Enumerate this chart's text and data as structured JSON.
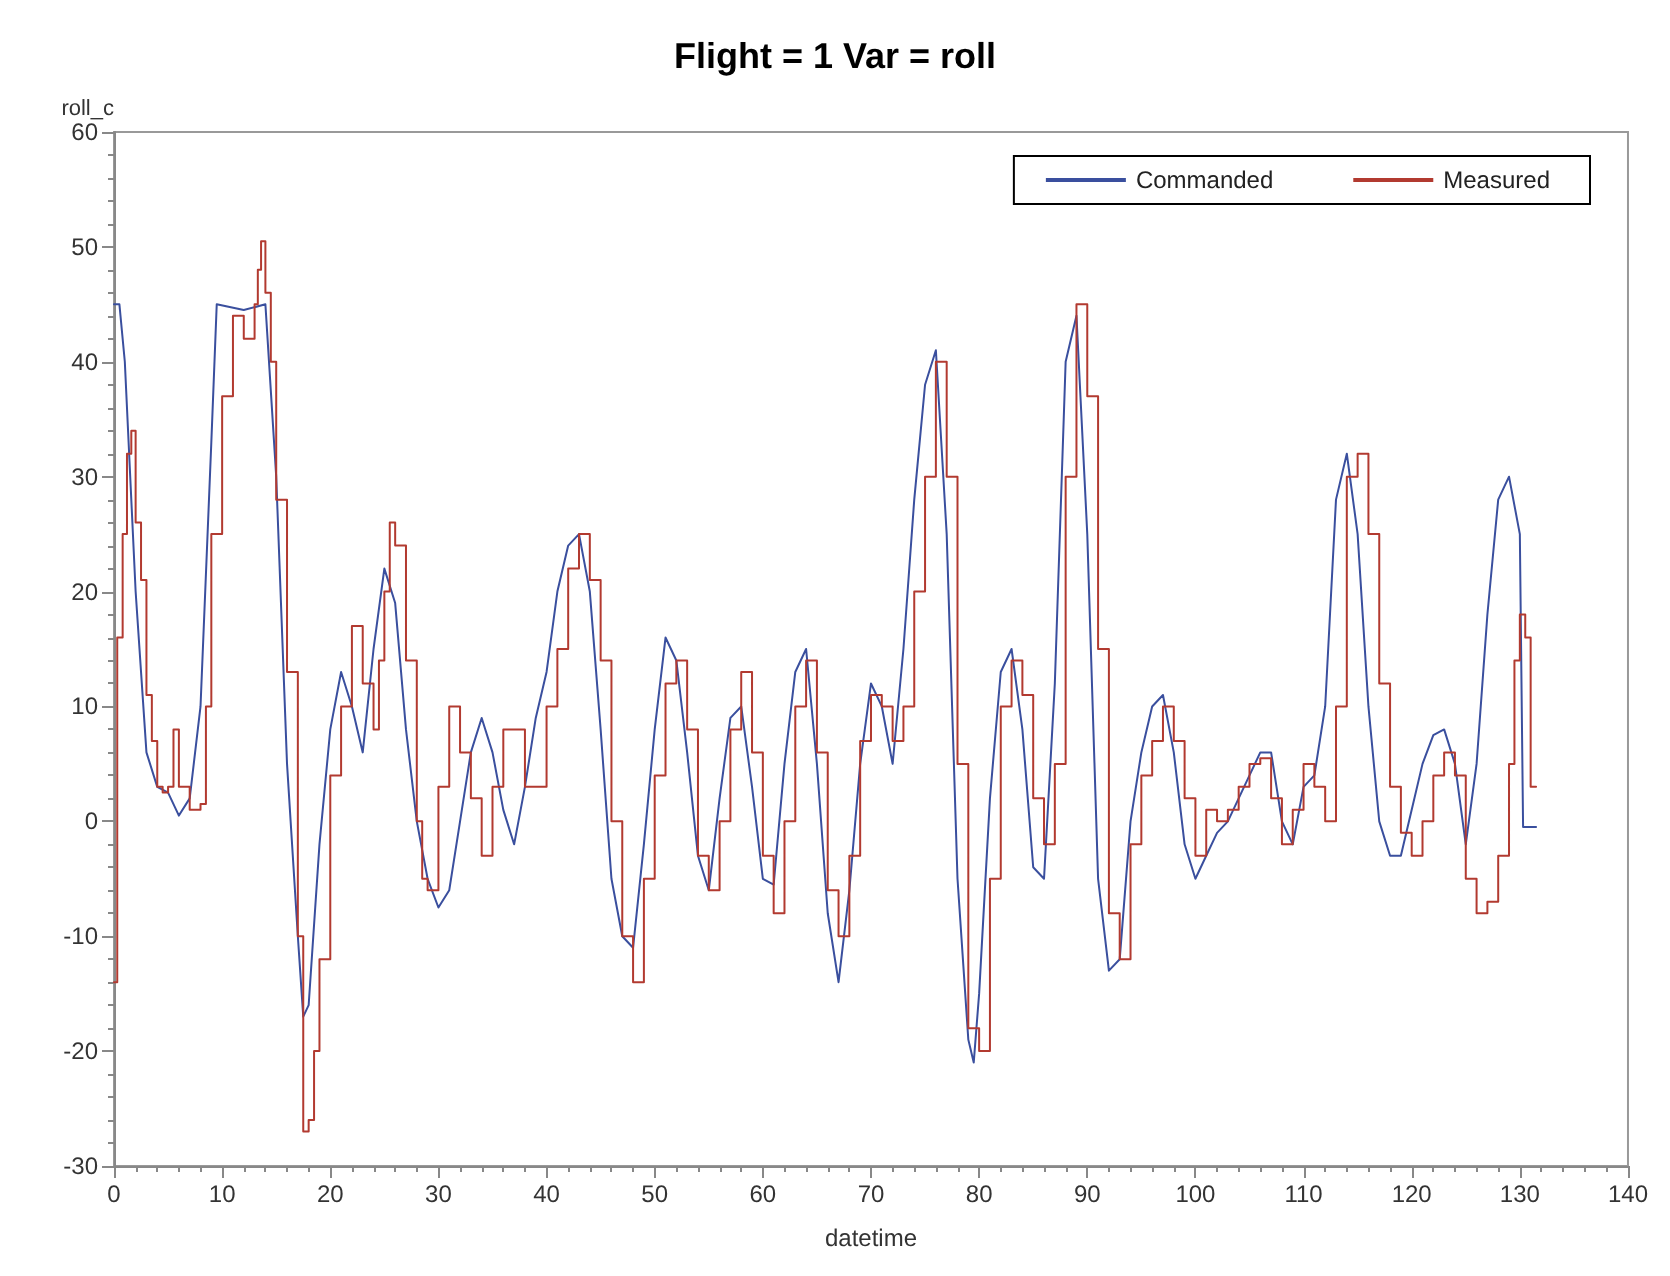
{
  "chart_data": {
    "type": "line",
    "title": "Flight = 1 Var = roll",
    "xlabel": "datetime",
    "ylabel": "roll_c",
    "xlim": [
      0,
      140
    ],
    "xticks": [
      0,
      10,
      20,
      30,
      40,
      50,
      60,
      70,
      80,
      90,
      100,
      110,
      120,
      130,
      140
    ],
    "ylim": [
      -30,
      60
    ],
    "yticks": [
      -30,
      -20,
      -10,
      0,
      10,
      20,
      30,
      40,
      50,
      60
    ],
    "grid": false,
    "legend": "top right",
    "marker": "none",
    "series": [
      {
        "name": "Commanded",
        "color": "#3a4f9e",
        "x": [
          0,
          0.5,
          1,
          2,
          3,
          4,
          5,
          6,
          7,
          8,
          9,
          9.5,
          12,
          14,
          15,
          16,
          17,
          17.5,
          18,
          19,
          20,
          21,
          22,
          23,
          24,
          25,
          26,
          27,
          28,
          29,
          30,
          31,
          32,
          33,
          34,
          35,
          36,
          37,
          38,
          39,
          40,
          41,
          42,
          43,
          44,
          45,
          46,
          47,
          48,
          49,
          50,
          51,
          52,
          53,
          54,
          55,
          56,
          57,
          58,
          59,
          60,
          61,
          62,
          63,
          64,
          65,
          66,
          67,
          68,
          69,
          70,
          71,
          72,
          73,
          74,
          75,
          76,
          77,
          78,
          79,
          79.5,
          80,
          81,
          82,
          83,
          84,
          85,
          86,
          87,
          88,
          89,
          90,
          91,
          92,
          93,
          94,
          95,
          96,
          97,
          98,
          99,
          100,
          101,
          102,
          103,
          104,
          105,
          106,
          107,
          108,
          109,
          110,
          111,
          112,
          113,
          114,
          115,
          116,
          117,
          118,
          119,
          120,
          121,
          122,
          123,
          124,
          125,
          126,
          127,
          128,
          129,
          130,
          130.3,
          131.5
        ],
        "values": [
          45,
          45,
          40,
          20,
          6,
          3,
          2.5,
          0.5,
          2,
          10,
          33,
          45,
          44.5,
          45,
          30,
          5,
          -10,
          -17,
          -16,
          -2,
          8,
          13,
          10,
          6,
          15,
          22,
          19,
          8,
          0,
          -5,
          -7.5,
          -6,
          0,
          6,
          9,
          6,
          1,
          -2,
          3,
          9,
          13,
          20,
          24,
          25,
          20,
          8,
          -5,
          -10,
          -11,
          -2,
          8,
          16,
          14,
          6,
          -3,
          -6,
          2,
          9,
          10,
          3,
          -5,
          -5.5,
          5,
          13,
          15,
          5,
          -8,
          -14,
          -6,
          5,
          12,
          10,
          5,
          15,
          28,
          38,
          41,
          25,
          -5,
          -19,
          -21,
          -15,
          2,
          13,
          15,
          8,
          -4,
          -5,
          12,
          40,
          44,
          25,
          -5,
          -13,
          -12,
          0,
          6,
          10,
          11,
          6,
          -2,
          -5,
          -3,
          -1,
          0,
          2,
          4,
          6,
          6,
          0,
          -2,
          3,
          4,
          10,
          28,
          32,
          25,
          10,
          0,
          -3,
          -3,
          1,
          5,
          7.5,
          8,
          5,
          -2,
          5,
          18,
          28,
          30,
          25,
          -0.5,
          -0.5
        ]
      },
      {
        "name": "Measured",
        "type": "step",
        "color": "#b23a30",
        "x": [
          0,
          0.3,
          0.8,
          1.2,
          1.6,
          2,
          2.5,
          3,
          3.5,
          4,
          4.5,
          5,
          5.5,
          6,
          7,
          8,
          8.5,
          9,
          10,
          11,
          12,
          13,
          13.3,
          13.6,
          14,
          14.5,
          15,
          16,
          17,
          17.5,
          18,
          18.5,
          19,
          20,
          21,
          22,
          23,
          24,
          24.5,
          25,
          25.5,
          26,
          27,
          28,
          28.5,
          29,
          30,
          31,
          32,
          33,
          34,
          35,
          36,
          37,
          38,
          39,
          40,
          41,
          42,
          43,
          44,
          45,
          46,
          47,
          48,
          49,
          50,
          51,
          52,
          53,
          54,
          55,
          56,
          57,
          58,
          59,
          60,
          61,
          62,
          63,
          64,
          65,
          66,
          67,
          68,
          69,
          70,
          71,
          72,
          73,
          74,
          75,
          76,
          77,
          78,
          79,
          80,
          81,
          82,
          83,
          84,
          85,
          86,
          87,
          88,
          89,
          90,
          91,
          92,
          93,
          94,
          95,
          96,
          97,
          98,
          99,
          100,
          101,
          102,
          103,
          104,
          105,
          106,
          107,
          108,
          109,
          110,
          111,
          112,
          113,
          114,
          115,
          116,
          117,
          118,
          119,
          120,
          121,
          122,
          123,
          124,
          125,
          126,
          127,
          128,
          129,
          129.5,
          130,
          130.5,
          131,
          131.5
        ],
        "values": [
          -14,
          16,
          25,
          32,
          34,
          26,
          21,
          11,
          7,
          3,
          2.5,
          3,
          8,
          3,
          1,
          1.5,
          10,
          25,
          37,
          44,
          42,
          45,
          48,
          50.5,
          46,
          40,
          28,
          13,
          -10,
          -27,
          -26,
          -20,
          -12,
          4,
          10,
          17,
          12,
          8,
          14,
          20,
          26,
          24,
          14,
          0,
          -5,
          -6,
          3,
          10,
          6,
          2,
          -3,
          3,
          8,
          8,
          3,
          3,
          10,
          15,
          22,
          25,
          21,
          14,
          0,
          -10,
          -14,
          -5,
          4,
          12,
          14,
          8,
          -3,
          -6,
          0,
          8,
          13,
          6,
          -3,
          -8,
          0,
          10,
          14,
          6,
          -6,
          -10,
          -3,
          7,
          11,
          10,
          7,
          10,
          20,
          30,
          40,
          30,
          5,
          -18,
          -20,
          -5,
          10,
          14,
          11,
          2,
          -2,
          5,
          30,
          45,
          37,
          15,
          -8,
          -12,
          -2,
          4,
          7,
          10,
          7,
          2,
          -3,
          1,
          0,
          1,
          3,
          5,
          5.5,
          2,
          -2,
          1,
          5,
          3,
          0,
          10,
          30,
          32,
          25,
          12,
          3,
          -1,
          -3,
          0,
          4,
          6,
          4,
          -5,
          -8,
          -7,
          -3,
          5,
          14,
          18,
          16,
          3,
          3
        ]
      }
    ]
  }
}
